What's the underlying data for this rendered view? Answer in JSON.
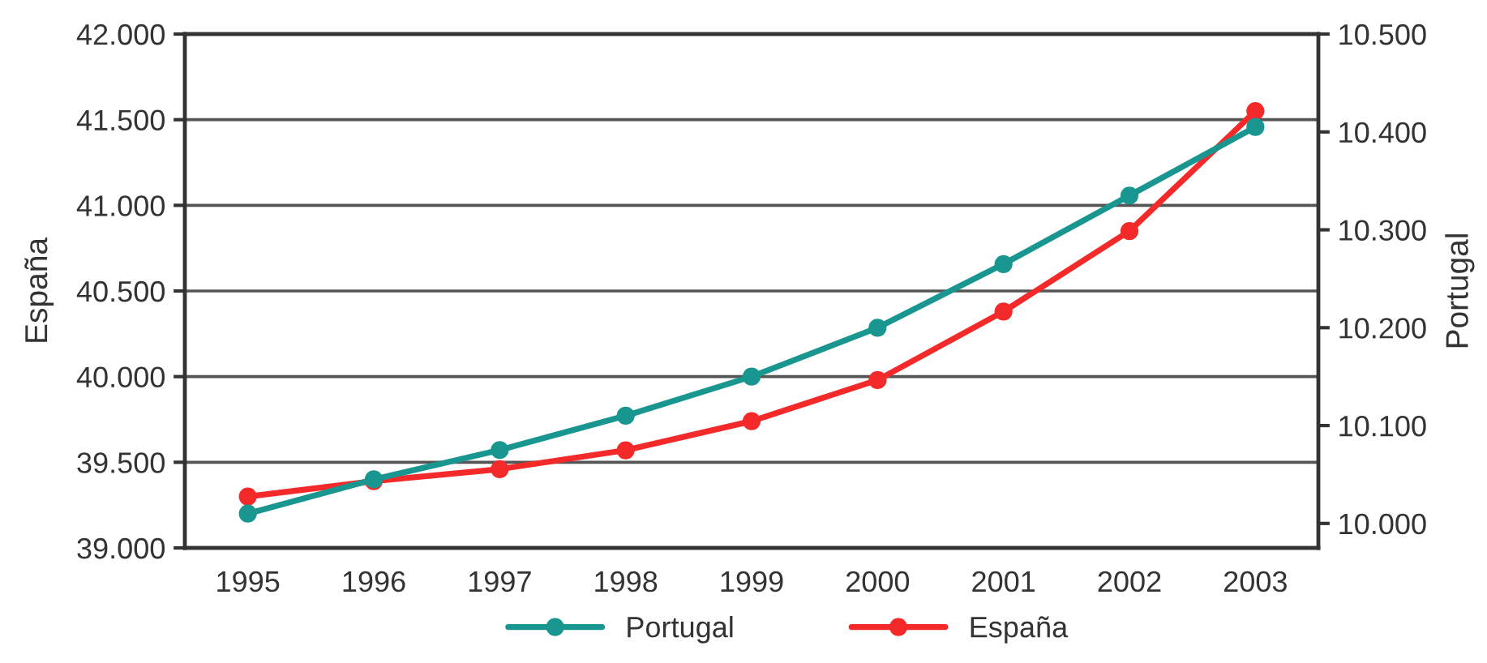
{
  "chart_data": {
    "type": "line",
    "categories": [
      "1995",
      "1996",
      "1997",
      "1998",
      "1999",
      "2000",
      "2001",
      "2002",
      "2003"
    ],
    "ylabel": "España",
    "y2label": "Portugal",
    "ylim": [
      39000,
      42000
    ],
    "yticks": [
      {
        "value": 39000,
        "label": "39.000"
      },
      {
        "value": 39500,
        "label": "39.500"
      },
      {
        "value": 40000,
        "label": "40.000"
      },
      {
        "value": 40500,
        "label": "40.500"
      },
      {
        "value": 41000,
        "label": "41.000"
      },
      {
        "value": 41500,
        "label": "41.500"
      },
      {
        "value": 42000,
        "label": "42.000"
      }
    ],
    "y2lim": [
      9975,
      10500
    ],
    "y2ticks": [
      {
        "value": 10000,
        "label": "10.000"
      },
      {
        "value": 10100,
        "label": "10.100"
      },
      {
        "value": 10200,
        "label": "10.200"
      },
      {
        "value": 10300,
        "label": "10.300"
      },
      {
        "value": 10400,
        "label": "10.400"
      },
      {
        "value": 10500,
        "label": "10.500"
      }
    ],
    "grid": "y",
    "legend": "bottom",
    "marker": "circle",
    "line_style": "solid",
    "series": [
      {
        "name": "Portugal",
        "color": "#18968f",
        "axis": "y2",
        "values": [
          10010,
          10045,
          10075,
          10110,
          10150,
          10200,
          10265,
          10335,
          10405
        ]
      },
      {
        "name": "España",
        "color": "#f42a2a",
        "axis": "y",
        "values": [
          39300,
          39390,
          39460,
          39570,
          39740,
          39980,
          40380,
          40850,
          41550
        ]
      }
    ]
  }
}
